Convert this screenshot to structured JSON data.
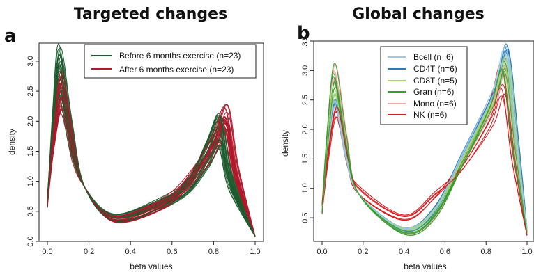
{
  "panels": [
    {
      "letter": "a",
      "title": "Targeted changes",
      "colors": {
        "Before": "#1d5c2e",
        "After": "#b0182b"
      }
    },
    {
      "letter": "b",
      "title": "Global changes",
      "colors": {
        "Bcell": "#9ecae1",
        "CD4T": "#2b7bba",
        "CD8T": "#a6d96a",
        "Gran": "#33a02c",
        "Mono": "#f4a2a2",
        "NK": "#d7191c"
      }
    }
  ],
  "chart_data": [
    {
      "type": "line",
      "title": "Targeted changes",
      "xlabel": "beta values",
      "ylabel": "density",
      "xlim": [
        0,
        1
      ],
      "ylim": [
        0,
        3.3
      ],
      "xticks": [
        "0.0",
        "0.2",
        "0.4",
        "0.6",
        "0.8",
        "1.0"
      ],
      "yticks": [
        "0.0",
        "0.5",
        "1.0",
        "1.5",
        "2.0",
        "2.5",
        "3.0"
      ],
      "legend": {
        "position": "top-right",
        "entries": [
          "Before 6 months exercise (n=23)",
          "After 6 months exercise (n=23)"
        ]
      },
      "series": [
        {
          "name": "Before 6 months exercise (n=23)",
          "group": "Before",
          "count": 23,
          "peak1_x": 0.06,
          "peak1_y_range": [
            2.4,
            3.32
          ],
          "trough_x": 0.32,
          "trough_y": 0.4,
          "peak2_x": 0.83,
          "peak2_y_range": [
            1.48,
            2.12
          ],
          "end_y": 0.08
        },
        {
          "name": "After 6 months exercise (n=23)",
          "group": "After",
          "count": 23,
          "peak1_x": 0.07,
          "peak1_y_range": [
            2.1,
            2.85
          ],
          "trough_x": 0.32,
          "trough_y": 0.38,
          "peak2_x": 0.86,
          "peak2_y_range": [
            1.62,
            2.28
          ],
          "end_y": 0.08
        }
      ]
    },
    {
      "type": "line",
      "title": "Global changes",
      "xlabel": "beta values",
      "ylabel": "density",
      "xlim": [
        0,
        1
      ],
      "ylim": [
        0.1,
        3.5
      ],
      "xticks": [
        "0.0",
        "0.2",
        "0.4",
        "0.6",
        "0.8",
        "1.0"
      ],
      "yticks": [
        "0.5",
        "1.0",
        "1.5",
        "2.0",
        "2.5",
        "3.0",
        "3.5"
      ],
      "legend": {
        "position": "top-center",
        "entries": [
          "Bcell (n=6)",
          "CD4T (n=6)",
          "CD8T (n=5)",
          "Gran (n=6)",
          "Mono (n=6)",
          "NK (n=6)"
        ]
      },
      "series": [
        {
          "name": "Bcell (n=6)",
          "group": "Bcell",
          "count": 6,
          "peak1_x": 0.065,
          "peak1_y_range": [
            2.35,
            2.62
          ],
          "trough_x": 0.4,
          "trough_y": 0.3,
          "peak2_x": 0.9,
          "peak2_y_range": [
            3.2,
            3.42
          ],
          "end_y": 0.3
        },
        {
          "name": "CD4T (n=6)",
          "group": "CD4T",
          "count": 6,
          "peak1_x": 0.065,
          "peak1_y_range": [
            2.4,
            2.52
          ],
          "trough_x": 0.4,
          "trough_y": 0.32,
          "peak2_x": 0.9,
          "peak2_y_range": [
            3.3,
            3.44
          ],
          "end_y": 0.3
        },
        {
          "name": "CD8T (n=5)",
          "group": "CD8T",
          "count": 5,
          "peak1_x": 0.065,
          "peak1_y_range": [
            2.55,
            2.75
          ],
          "trough_x": 0.4,
          "trough_y": 0.29,
          "peak2_x": 0.9,
          "peak2_y_range": [
            3.05,
            3.3
          ],
          "end_y": 0.3
        },
        {
          "name": "Gran (n=6)",
          "group": "Gran",
          "count": 6,
          "peak1_x": 0.06,
          "peak1_y_range": [
            2.7,
            3.2
          ],
          "trough_x": 0.4,
          "trough_y": 0.25,
          "peak2_x": 0.89,
          "peak2_y_range": [
            2.95,
            3.2
          ],
          "end_y": 0.25
        },
        {
          "name": "Mono (n=6)",
          "group": "Mono",
          "count": 6,
          "peak1_x": 0.06,
          "peak1_y_range": [
            2.85,
            3.2
          ],
          "trough_x": 0.4,
          "trough_y": 0.27,
          "peak2_x": 0.89,
          "peak2_y_range": [
            2.9,
            3.15
          ],
          "end_y": 0.25
        },
        {
          "name": "NK (n=6)",
          "group": "NK",
          "count": 6,
          "peak1_x": 0.07,
          "peak1_y_range": [
            2.15,
            2.4
          ],
          "trough_x": 0.4,
          "trough_y": 0.48,
          "peak2_x": 0.885,
          "peak2_y_range": [
            2.55,
            3.18
          ],
          "end_y": 0.2
        }
      ]
    }
  ]
}
